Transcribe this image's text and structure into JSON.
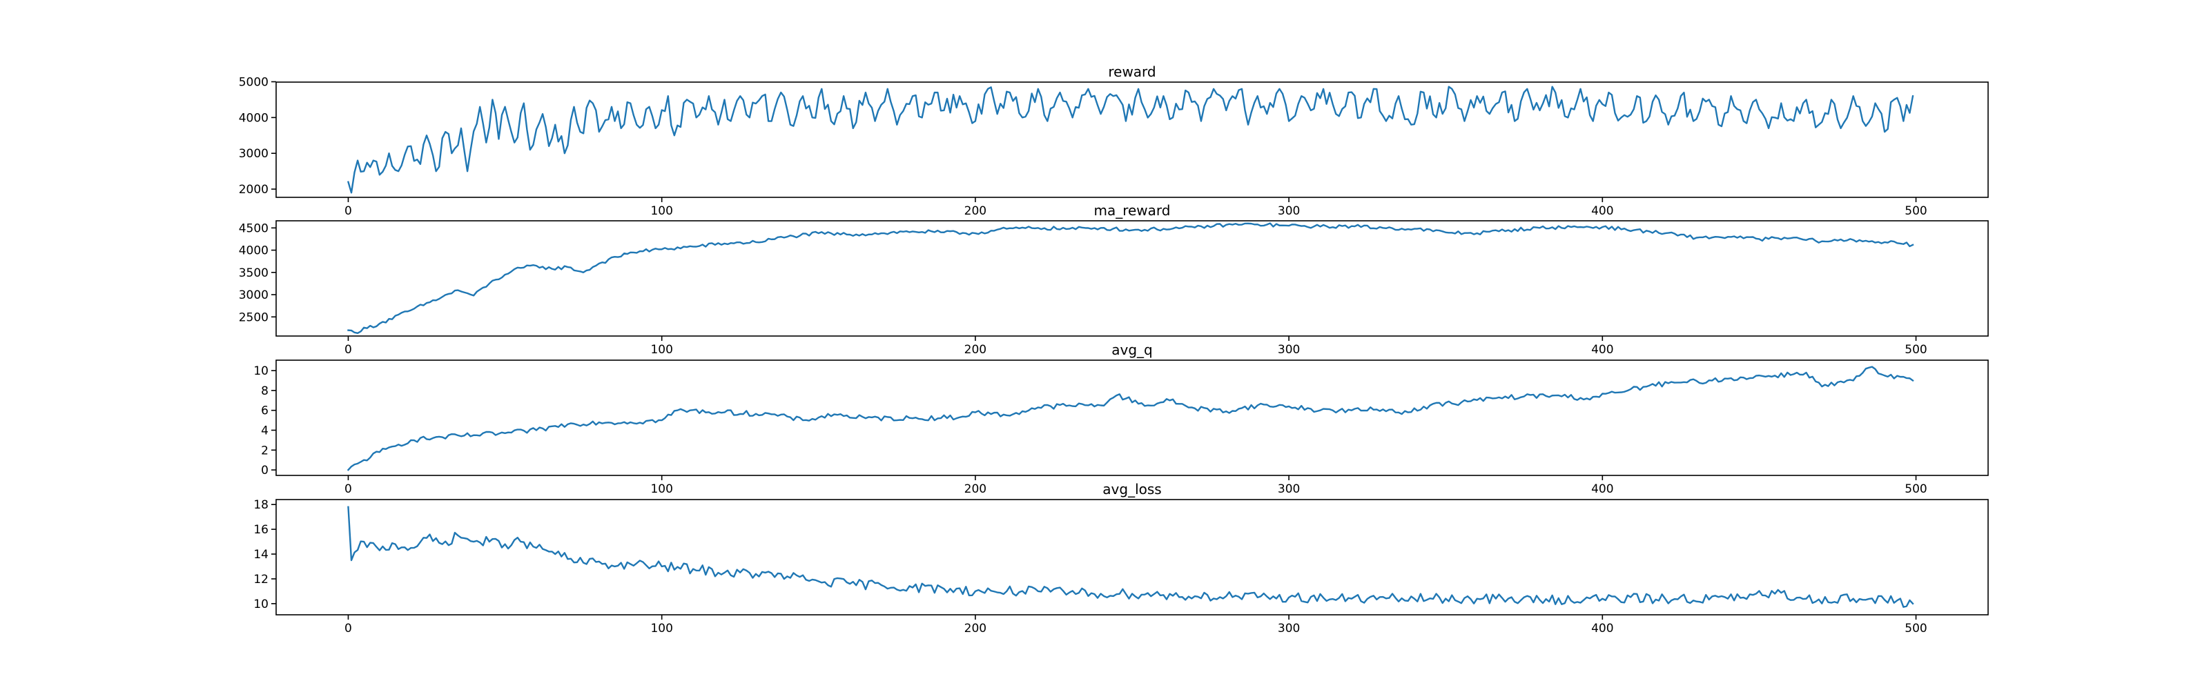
{
  "figure": {
    "background": "#ffffff",
    "line_color": "#1f77b4"
  },
  "chart_data": [
    {
      "type": "line",
      "title": "reward",
      "xlim": [
        -23,
        523
      ],
      "ylim": [
        1770,
        4990
      ],
      "xticks": [
        0,
        100,
        200,
        300,
        400,
        500
      ],
      "yticks": [
        2000,
        3000,
        4000,
        5000
      ],
      "x_start": 0,
      "x_step": 1,
      "anchors": [
        [
          0,
          2200
        ],
        [
          1,
          1900
        ],
        [
          3,
          2800
        ],
        [
          5,
          2500
        ],
        [
          8,
          2800
        ],
        [
          10,
          2400
        ],
        [
          13,
          3000
        ],
        [
          16,
          2500
        ],
        [
          20,
          3200
        ],
        [
          23,
          2700
        ],
        [
          25,
          3500
        ],
        [
          28,
          2500
        ],
        [
          31,
          3600
        ],
        [
          33,
          3000
        ],
        [
          36,
          3700
        ],
        [
          38,
          2500
        ],
        [
          42,
          4300
        ],
        [
          44,
          3300
        ],
        [
          46,
          4500
        ],
        [
          48,
          3400
        ],
        [
          50,
          4300
        ],
        [
          53,
          3300
        ],
        [
          56,
          4400
        ],
        [
          58,
          3100
        ],
        [
          62,
          4100
        ],
        [
          64,
          3200
        ],
        [
          66,
          3800
        ],
        [
          69,
          3000
        ],
        [
          72,
          4300
        ],
        [
          74,
          3600
        ],
        [
          78,
          4400
        ],
        [
          80,
          3600
        ],
        [
          84,
          4300
        ],
        [
          87,
          3700
        ],
        [
          90,
          4400
        ],
        [
          92,
          3800
        ],
        [
          96,
          4300
        ],
        [
          98,
          3700
        ],
        [
          102,
          4600
        ],
        [
          104,
          3500
        ],
        [
          108,
          4500
        ],
        [
          111,
          4000
        ],
        [
          115,
          4600
        ],
        [
          118,
          3800
        ],
        [
          120,
          4500
        ],
        [
          122,
          3900
        ],
        [
          125,
          4600
        ],
        [
          128,
          4000
        ],
        [
          132,
          4600
        ],
        [
          135,
          3900
        ],
        [
          138,
          4700
        ],
        [
          141,
          3800
        ],
        [
          145,
          4600
        ],
        [
          148,
          4000
        ],
        [
          151,
          4800
        ],
        [
          154,
          3900
        ],
        [
          158,
          4600
        ],
        [
          161,
          3700
        ],
        [
          165,
          4700
        ],
        [
          168,
          3900
        ],
        [
          172,
          4800
        ],
        [
          175,
          3800
        ],
        [
          180,
          4600
        ],
        [
          183,
          4000
        ],
        [
          187,
          4700
        ],
        [
          190,
          4200
        ],
        [
          195,
          4600
        ],
        [
          200,
          3900
        ],
        [
          204,
          4800
        ],
        [
          207,
          4100
        ],
        [
          211,
          4700
        ],
        [
          215,
          4000
        ],
        [
          220,
          4800
        ],
        [
          223,
          3900
        ],
        [
          227,
          4700
        ],
        [
          231,
          4000
        ],
        [
          236,
          4800
        ],
        [
          240,
          4100
        ],
        [
          244,
          4600
        ],
        [
          248,
          3900
        ],
        [
          252,
          4800
        ],
        [
          256,
          4100
        ],
        [
          260,
          4600
        ],
        [
          263,
          4000
        ],
        [
          268,
          4700
        ],
        [
          272,
          3900
        ],
        [
          276,
          4800
        ],
        [
          280,
          4200
        ],
        [
          285,
          4800
        ],
        [
          287,
          3800
        ],
        [
          290,
          4600
        ],
        [
          293,
          4100
        ],
        [
          297,
          4800
        ],
        [
          300,
          3900
        ],
        [
          304,
          4600
        ],
        [
          307,
          4200
        ],
        [
          311,
          4800
        ],
        [
          315,
          4100
        ],
        [
          319,
          4700
        ],
        [
          323,
          4000
        ],
        [
          327,
          4800
        ],
        [
          331,
          3900
        ],
        [
          335,
          4600
        ],
        [
          339,
          3800
        ],
        [
          343,
          4700
        ],
        [
          347,
          4000
        ],
        [
          352,
          4800
        ],
        [
          356,
          3900
        ],
        [
          360,
          4600
        ],
        [
          364,
          4100
        ],
        [
          368,
          4700
        ],
        [
          372,
          3900
        ],
        [
          376,
          4800
        ],
        [
          380,
          4200
        ],
        [
          385,
          4700
        ],
        [
          389,
          4000
        ],
        [
          393,
          4800
        ],
        [
          397,
          3900
        ],
        [
          402,
          4700
        ],
        [
          406,
          4000
        ],
        [
          411,
          4600
        ],
        [
          414,
          3900
        ],
        [
          418,
          4500
        ],
        [
          421,
          3800
        ],
        [
          425,
          4600
        ],
        [
          429,
          3900
        ],
        [
          434,
          4500
        ],
        [
          437,
          3800
        ],
        [
          441,
          4600
        ],
        [
          445,
          3900
        ],
        [
          449,
          4500
        ],
        [
          453,
          3700
        ],
        [
          457,
          4400
        ],
        [
          461,
          3900
        ],
        [
          465,
          4500
        ],
        [
          469,
          3800
        ],
        [
          473,
          4500
        ],
        [
          476,
          3700
        ],
        [
          480,
          4600
        ],
        [
          483,
          3900
        ],
        [
          487,
          4400
        ],
        [
          490,
          3600
        ],
        [
          493,
          4500
        ],
        [
          496,
          3900
        ],
        [
          499,
          4600
        ]
      ],
      "noise": 280
    },
    {
      "type": "line",
      "title": "ma_reward",
      "xlim": [
        -23,
        523
      ],
      "ylim": [
        2070,
        4660
      ],
      "xticks": [
        0,
        100,
        200,
        300,
        400,
        500
      ],
      "yticks": [
        2500,
        3000,
        3500,
        4000,
        4500
      ],
      "x_start": 0,
      "x_step": 1,
      "anchors": [
        [
          0,
          2200
        ],
        [
          2,
          2150
        ],
        [
          10,
          2350
        ],
        [
          20,
          2650
        ],
        [
          30,
          2950
        ],
        [
          35,
          3100
        ],
        [
          40,
          2980
        ],
        [
          45,
          3250
        ],
        [
          50,
          3450
        ],
        [
          55,
          3600
        ],
        [
          60,
          3650
        ],
        [
          65,
          3580
        ],
        [
          70,
          3620
        ],
        [
          75,
          3500
        ],
        [
          80,
          3700
        ],
        [
          90,
          3950
        ],
        [
          100,
          4020
        ],
        [
          110,
          4080
        ],
        [
          120,
          4150
        ],
        [
          130,
          4180
        ],
        [
          140,
          4300
        ],
        [
          150,
          4380
        ],
        [
          160,
          4350
        ],
        [
          170,
          4380
        ],
        [
          180,
          4420
        ],
        [
          190,
          4400
        ],
        [
          200,
          4380
        ],
        [
          210,
          4480
        ],
        [
          220,
          4500
        ],
        [
          230,
          4480
        ],
        [
          240,
          4500
        ],
        [
          250,
          4450
        ],
        [
          260,
          4480
        ],
        [
          270,
          4510
        ],
        [
          280,
          4570
        ],
        [
          290,
          4580
        ],
        [
          300,
          4550
        ],
        [
          310,
          4530
        ],
        [
          320,
          4540
        ],
        [
          330,
          4500
        ],
        [
          340,
          4480
        ],
        [
          350,
          4400
        ],
        [
          360,
          4380
        ],
        [
          370,
          4450
        ],
        [
          380,
          4500
        ],
        [
          390,
          4520
        ],
        [
          400,
          4520
        ],
        [
          410,
          4450
        ],
        [
          420,
          4380
        ],
        [
          430,
          4280
        ],
        [
          440,
          4300
        ],
        [
          450,
          4250
        ],
        [
          460,
          4270
        ],
        [
          470,
          4200
        ],
        [
          480,
          4230
        ],
        [
          490,
          4180
        ],
        [
          499,
          4120
        ]
      ],
      "noise": 40
    },
    {
      "type": "line",
      "title": "avg_q",
      "xlim": [
        -23,
        523
      ],
      "ylim": [
        -0.55,
        11.05
      ],
      "xticks": [
        0,
        100,
        200,
        300,
        400,
        500
      ],
      "yticks": [
        0,
        2,
        4,
        6,
        8,
        10
      ],
      "x_start": 0,
      "x_step": 1,
      "anchors": [
        [
          0,
          0
        ],
        [
          5,
          1.0
        ],
        [
          10,
          1.8
        ],
        [
          15,
          2.4
        ],
        [
          20,
          3.0
        ],
        [
          30,
          3.3
        ],
        [
          40,
          3.5
        ],
        [
          50,
          3.7
        ],
        [
          60,
          4.0
        ],
        [
          70,
          4.6
        ],
        [
          80,
          4.8
        ],
        [
          90,
          4.8
        ],
        [
          100,
          5.0
        ],
        [
          105,
          6.0
        ],
        [
          120,
          5.8
        ],
        [
          135,
          5.6
        ],
        [
          145,
          5.0
        ],
        [
          155,
          5.6
        ],
        [
          165,
          5.2
        ],
        [
          180,
          5.2
        ],
        [
          195,
          5.3
        ],
        [
          200,
          5.8
        ],
        [
          210,
          5.5
        ],
        [
          220,
          6.3
        ],
        [
          230,
          6.5
        ],
        [
          240,
          6.5
        ],
        [
          245,
          7.5
        ],
        [
          255,
          6.5
        ],
        [
          262,
          7.0
        ],
        [
          270,
          6.2
        ],
        [
          280,
          5.9
        ],
        [
          290,
          6.5
        ],
        [
          300,
          6.4
        ],
        [
          310,
          6.0
        ],
        [
          320,
          6.0
        ],
        [
          330,
          6.1
        ],
        [
          338,
          5.8
        ],
        [
          345,
          6.5
        ],
        [
          355,
          6.8
        ],
        [
          365,
          7.2
        ],
        [
          375,
          7.4
        ],
        [
          385,
          7.5
        ],
        [
          395,
          7.2
        ],
        [
          405,
          7.8
        ],
        [
          415,
          8.5
        ],
        [
          425,
          8.8
        ],
        [
          435,
          9.0
        ],
        [
          445,
          9.3
        ],
        [
          455,
          9.5
        ],
        [
          465,
          9.8
        ],
        [
          470,
          8.4
        ],
        [
          480,
          9.0
        ],
        [
          485,
          10.3
        ],
        [
          490,
          9.5
        ],
        [
          499,
          9.0
        ]
      ],
      "noise": 0.25
    },
    {
      "type": "line",
      "title": "avg_loss",
      "xlim": [
        -23,
        523
      ],
      "ylim": [
        9.1,
        18.4
      ],
      "xticks": [
        0,
        100,
        200,
        300,
        400,
        500
      ],
      "yticks": [
        10,
        12,
        14,
        16,
        18
      ],
      "x_start": 0,
      "x_step": 1,
      "anchors": [
        [
          0,
          17.8
        ],
        [
          1,
          13.5
        ],
        [
          5,
          15.0
        ],
        [
          10,
          14.3
        ],
        [
          15,
          14.8
        ],
        [
          20,
          14.5
        ],
        [
          25,
          15.3
        ],
        [
          30,
          14.8
        ],
        [
          35,
          15.5
        ],
        [
          40,
          15.0
        ],
        [
          45,
          15.0
        ],
        [
          50,
          14.8
        ],
        [
          55,
          15.0
        ],
        [
          60,
          14.5
        ],
        [
          65,
          14.2
        ],
        [
          70,
          13.6
        ],
        [
          75,
          13.3
        ],
        [
          80,
          13.4
        ],
        [
          85,
          13.0
        ],
        [
          90,
          13.2
        ],
        [
          95,
          13.1
        ],
        [
          100,
          13.0
        ],
        [
          110,
          12.8
        ],
        [
          120,
          12.5
        ],
        [
          130,
          12.4
        ],
        [
          140,
          12.2
        ],
        [
          150,
          11.8
        ],
        [
          160,
          11.6
        ],
        [
          170,
          11.5
        ],
        [
          180,
          11.3
        ],
        [
          190,
          11.2
        ],
        [
          200,
          11.0
        ],
        [
          210,
          11.0
        ],
        [
          220,
          11.0
        ],
        [
          230,
          10.9
        ],
        [
          240,
          10.8
        ],
        [
          250,
          10.8
        ],
        [
          260,
          10.7
        ],
        [
          270,
          10.6
        ],
        [
          280,
          10.6
        ],
        [
          290,
          10.5
        ],
        [
          300,
          10.5
        ],
        [
          320,
          10.4
        ],
        [
          340,
          10.4
        ],
        [
          360,
          10.4
        ],
        [
          380,
          10.3
        ],
        [
          400,
          10.4
        ],
        [
          420,
          10.4
        ],
        [
          440,
          10.4
        ],
        [
          455,
          10.8
        ],
        [
          465,
          10.4
        ],
        [
          480,
          10.4
        ],
        [
          490,
          10.3
        ],
        [
          499,
          10.0
        ]
      ],
      "noise": 0.4
    }
  ]
}
